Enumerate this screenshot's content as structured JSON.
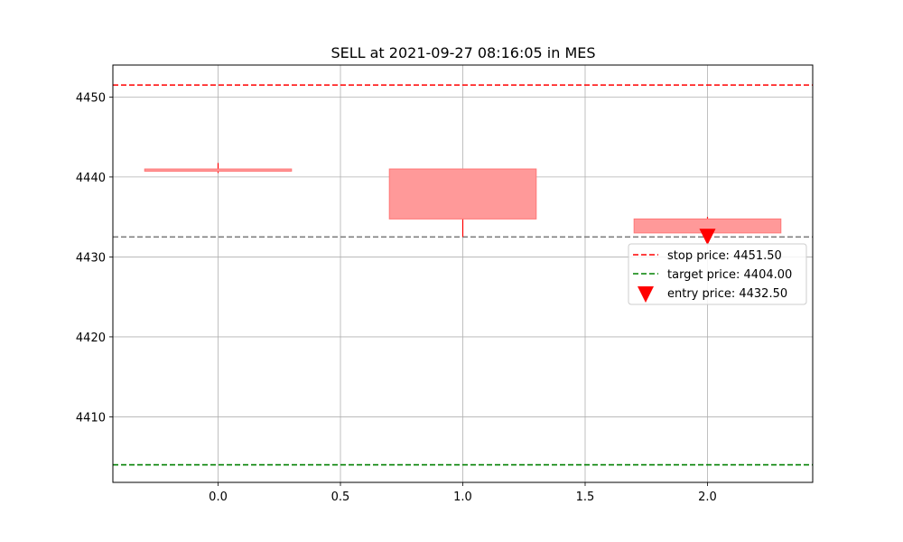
{
  "chart_data": {
    "type": "candlestick",
    "title": "SELL at 2021-09-27 08:16:05 in MES",
    "xlabel": "",
    "ylabel": "",
    "xlim": [
      -0.43,
      2.43
    ],
    "ylim": [
      4401.8,
      4454.0
    ],
    "x_ticks": [
      0.0,
      0.5,
      1.0,
      1.5,
      2.0
    ],
    "x_tick_labels": [
      "0.0",
      "0.5",
      "1.0",
      "1.5",
      "2.0"
    ],
    "y_ticks": [
      4410,
      4420,
      4430,
      4440,
      4450
    ],
    "y_tick_labels": [
      "4410",
      "4420",
      "4430",
      "4440",
      "4450"
    ],
    "grid": true,
    "candle_width": 0.6,
    "candles": [
      {
        "x": 0,
        "open": 4441.0,
        "high": 4441.75,
        "low": 4440.5,
        "close": 4440.75
      },
      {
        "x": 1,
        "open": 4441.0,
        "high": 4441.0,
        "low": 4432.5,
        "close": 4434.75
      },
      {
        "x": 2,
        "open": 4434.75,
        "high": 4435.0,
        "low": 4432.5,
        "close": 4433.0
      }
    ],
    "candle_color": "#ff0000",
    "horizontal_lines": [
      {
        "label": "stop price: 4451.50",
        "y": 4451.5,
        "color": "#ff0000",
        "style": "dashed",
        "in_legend": true
      },
      {
        "label": "target price: 4404.00",
        "y": 4404.0,
        "color": "#008000",
        "style": "dashed",
        "in_legend": true
      },
      {
        "y": 4432.5,
        "color": "#808080",
        "style": "dashed",
        "in_legend": false
      }
    ],
    "markers": [
      {
        "label": "entry price: 4432.50",
        "x": 2,
        "y": 4432.5,
        "shape": "triangle-down",
        "color": "#ff0000"
      }
    ],
    "legend": {
      "placement": "center-right",
      "entries": [
        {
          "label": "stop price: 4451.50",
          "kind": "dashed-line",
          "color": "#ff0000"
        },
        {
          "label": "target price: 4404.00",
          "kind": "dashed-line",
          "color": "#008000"
        },
        {
          "label": "entry price: 4432.50",
          "kind": "triangle-down",
          "color": "#ff0000"
        }
      ]
    }
  }
}
